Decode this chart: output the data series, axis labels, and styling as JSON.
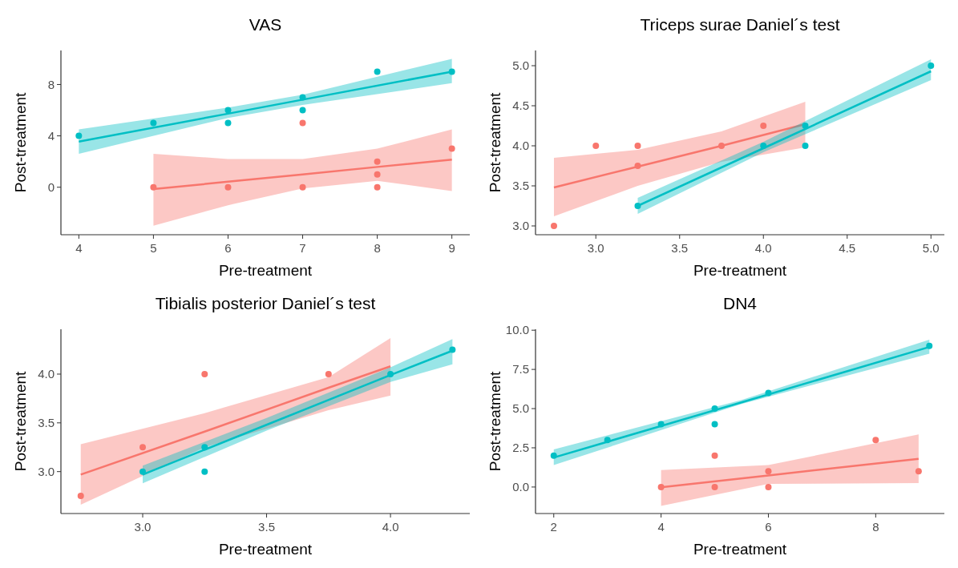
{
  "chart_data": [
    {
      "type": "scatter",
      "title": "VAS",
      "xlabel": "Pre-treatment",
      "ylabel": "Post-treatment",
      "xlim": [
        3.76,
        9.24
      ],
      "ylim": [
        -3.7,
        10.65
      ],
      "xticks": [
        4,
        5,
        6,
        7,
        8,
        9
      ],
      "yticks": [
        0,
        4,
        8
      ],
      "grid": false,
      "marker": "circle",
      "series": [
        {
          "color": "#00bfc4",
          "x": [
            4,
            5,
            6,
            6,
            7,
            7,
            8,
            9
          ],
          "values": [
            4,
            5,
            6,
            5,
            7,
            6,
            9,
            9
          ]
        },
        {
          "color": "#f8766d",
          "x": [
            5,
            6,
            7,
            7,
            8,
            8,
            8,
            9
          ],
          "values": [
            0,
            0,
            5,
            0,
            2,
            1,
            0,
            3
          ]
        },
        {
          "type": "line",
          "marker": "none",
          "color": "#00bfc4",
          "x": [
            4,
            6,
            7,
            9
          ],
          "values": [
            3.55,
            5.73,
            6.82,
            9.0
          ],
          "lower": [
            2.6,
            5.4,
            6.4,
            8.1
          ],
          "upper": [
            4.5,
            6.2,
            7.2,
            10.0
          ]
        },
        {
          "type": "line",
          "marker": "none",
          "color": "#f8766d",
          "x": [
            5,
            6,
            7,
            8,
            9
          ],
          "values": [
            -0.15,
            0.43,
            1.0,
            1.58,
            2.15
          ],
          "lower": [
            -3.0,
            -1.4,
            -0.1,
            0.5,
            -0.3
          ],
          "upper": [
            2.6,
            2.2,
            2.2,
            3.0,
            4.5
          ]
        }
      ]
    },
    {
      "type": "scatter",
      "title": "Triceps surae  Daniel´s test",
      "xlabel": "Pre-treatment",
      "ylabel": "Post-treatment",
      "xlim": [
        2.64,
        5.08
      ],
      "ylim": [
        2.89,
        5.19
      ],
      "xticks": [
        {
          "value": 3,
          "label": "3.0"
        },
        3.5,
        {
          "value": 4,
          "label": "4.0"
        },
        4.5,
        {
          "value": 5,
          "label": "5.0"
        }
      ],
      "yticks": [
        {
          "value": 3,
          "label": "3.0"
        },
        3.5,
        {
          "value": 4,
          "label": "4.0"
        },
        4.5,
        {
          "value": 5,
          "label": "5.0"
        }
      ],
      "grid": false,
      "marker": "circle",
      "series": [
        {
          "color": "#f8766d",
          "x": [
            2.75,
            3.0,
            3.25,
            3.25,
            3.75,
            4.0
          ],
          "values": [
            3.0,
            4.0,
            4.0,
            3.75,
            4.0,
            4.25
          ]
        },
        {
          "color": "#00bfc4",
          "x": [
            3.25,
            4.0,
            4.25,
            4.25,
            5.0
          ],
          "values": [
            3.25,
            4.0,
            4.25,
            4.0,
            5.0
          ]
        },
        {
          "type": "line",
          "marker": "none",
          "color": "#f8766d",
          "x": [
            2.75,
            3.25,
            3.75,
            4.25
          ],
          "values": [
            3.48,
            3.74,
            4.0,
            4.27
          ],
          "lower": [
            3.12,
            3.5,
            3.8,
            3.98
          ],
          "upper": [
            3.85,
            3.95,
            4.18,
            4.55
          ]
        },
        {
          "type": "line",
          "marker": "none",
          "color": "#00bfc4",
          "x": [
            3.25,
            4.0,
            5.0
          ],
          "values": [
            3.25,
            3.97,
            4.93
          ],
          "lower": [
            3.15,
            3.92,
            4.82
          ],
          "upper": [
            3.35,
            4.05,
            5.08
          ]
        }
      ]
    },
    {
      "type": "scatter",
      "title": "Tibialis posterior  Daniel´s test",
      "xlabel": "Pre-treatment",
      "ylabel": "Post-treatment",
      "xlim": [
        2.67,
        4.32
      ],
      "ylim": [
        2.57,
        4.46
      ],
      "xticks": [
        {
          "value": 3,
          "label": "3.0"
        },
        3.5,
        {
          "value": 4,
          "label": "4.0"
        }
      ],
      "yticks": [
        {
          "value": 3,
          "label": "3.0"
        },
        3.5,
        {
          "value": 4,
          "label": "4.0"
        }
      ],
      "grid": false,
      "marker": "circle",
      "series": [
        {
          "color": "#f8766d",
          "x": [
            2.75,
            3.0,
            3.25,
            3.75
          ],
          "values": [
            2.75,
            3.25,
            4.0,
            4.0
          ]
        },
        {
          "color": "#00bfc4",
          "x": [
            3.0,
            3.25,
            3.25,
            4.0,
            4.25
          ],
          "values": [
            3.0,
            3.25,
            3.0,
            4.0,
            4.25
          ]
        },
        {
          "type": "line",
          "marker": "none",
          "color": "#f8766d",
          "x": [
            2.75,
            3.25,
            3.75,
            4.0
          ],
          "values": [
            2.97,
            3.41,
            3.86,
            4.08
          ],
          "lower": [
            2.66,
            3.25,
            3.63,
            3.78
          ],
          "upper": [
            3.28,
            3.6,
            3.97,
            4.37
          ]
        },
        {
          "type": "line",
          "marker": "none",
          "color": "#00bfc4",
          "x": [
            3.0,
            3.5,
            4.0,
            4.25
          ],
          "values": [
            2.97,
            3.48,
            3.99,
            4.24
          ],
          "lower": [
            2.88,
            3.42,
            3.92,
            4.1
          ],
          "upper": [
            3.06,
            3.55,
            4.07,
            4.36
          ]
        }
      ]
    },
    {
      "type": "scatter",
      "title": "DN4",
      "xlabel": "Pre-treatment",
      "ylabel": "Post-treatment",
      "xlim": [
        1.66,
        9.28
      ],
      "ylim": [
        -1.69,
        10.06
      ],
      "xticks": [
        2,
        4,
        6,
        8
      ],
      "yticks": [
        {
          "value": 0,
          "label": "0.0"
        },
        2.5,
        {
          "value": 5,
          "label": "5.0"
        },
        7.5,
        {
          "value": 10,
          "label": "10.0"
        }
      ],
      "grid": false,
      "marker": "circle",
      "series": [
        {
          "color": "#00bfc4",
          "x": [
            2,
            3,
            4,
            5,
            5,
            6,
            9
          ],
          "values": [
            2,
            3,
            4,
            5,
            4,
            6,
            9
          ]
        },
        {
          "color": "#f8766d",
          "x": [
            4,
            5,
            5,
            6,
            6,
            8,
            8.8
          ],
          "values": [
            0,
            2,
            0,
            1,
            0,
            3,
            1
          ]
        },
        {
          "type": "line",
          "marker": "none",
          "color": "#f8766d",
          "x": [
            4,
            6,
            8.8
          ],
          "values": [
            -0.02,
            0.74,
            1.8
          ],
          "lower": [
            -1.2,
            0.2,
            0.25
          ],
          "upper": [
            1.08,
            1.4,
            3.35
          ]
        },
        {
          "type": "line",
          "marker": "none",
          "color": "#00bfc4",
          "x": [
            2,
            5.5,
            9
          ],
          "values": [
            1.88,
            5.4,
            8.93
          ],
          "lower": [
            1.4,
            5.3,
            8.5
          ],
          "upper": [
            2.4,
            5.55,
            9.4
          ]
        }
      ]
    }
  ]
}
